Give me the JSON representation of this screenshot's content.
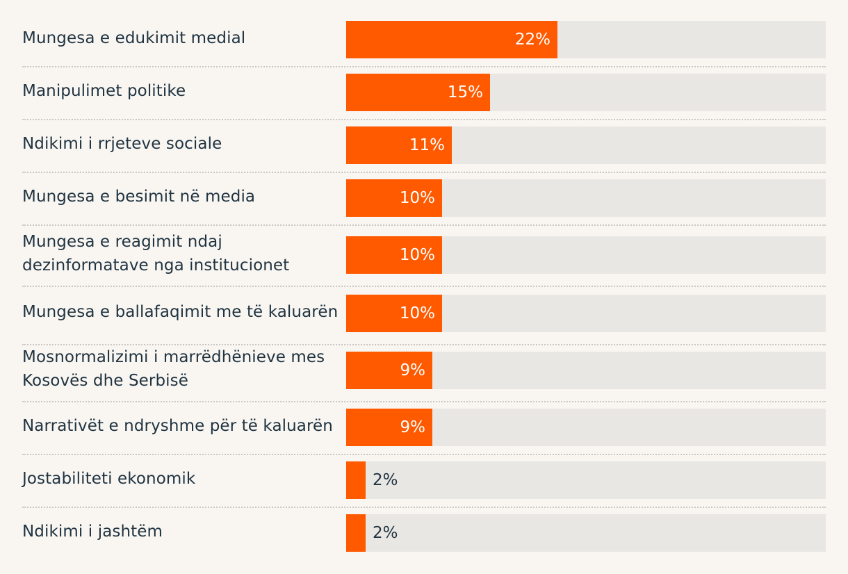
{
  "chart_data": {
    "type": "bar",
    "orientation": "horizontal",
    "categories": [
      "Mungesa e edukimit medial",
      "Manipulimet politike",
      "Ndikimi i rrjeteve sociale",
      "Mungesa e besimit në media",
      "Mungesa e reagimit ndaj dezinformatave nga institucionet",
      "Mungesa e ballafaqimit me të kaluarën",
      "Mosnormalizimi i marrëdhënieve mes Kosovës dhe Serbisë",
      "Narrativët e ndryshme për të kaluarën",
      "Jostabiliteti ekonomik",
      "Ndikimi i jashtëm"
    ],
    "values": [
      22,
      15,
      11,
      10,
      10,
      10,
      9,
      9,
      2,
      2
    ],
    "value_labels": [
      "22%",
      "15%",
      "11%",
      "10%",
      "10%",
      "10%",
      "9%",
      "9%",
      "2%",
      "2%"
    ],
    "xlim": [
      0,
      50
    ],
    "bar_color": "#ff5a00",
    "track_color": "#e9e7e4",
    "background": "#f9f6f2",
    "text_color": "#1f3340"
  }
}
